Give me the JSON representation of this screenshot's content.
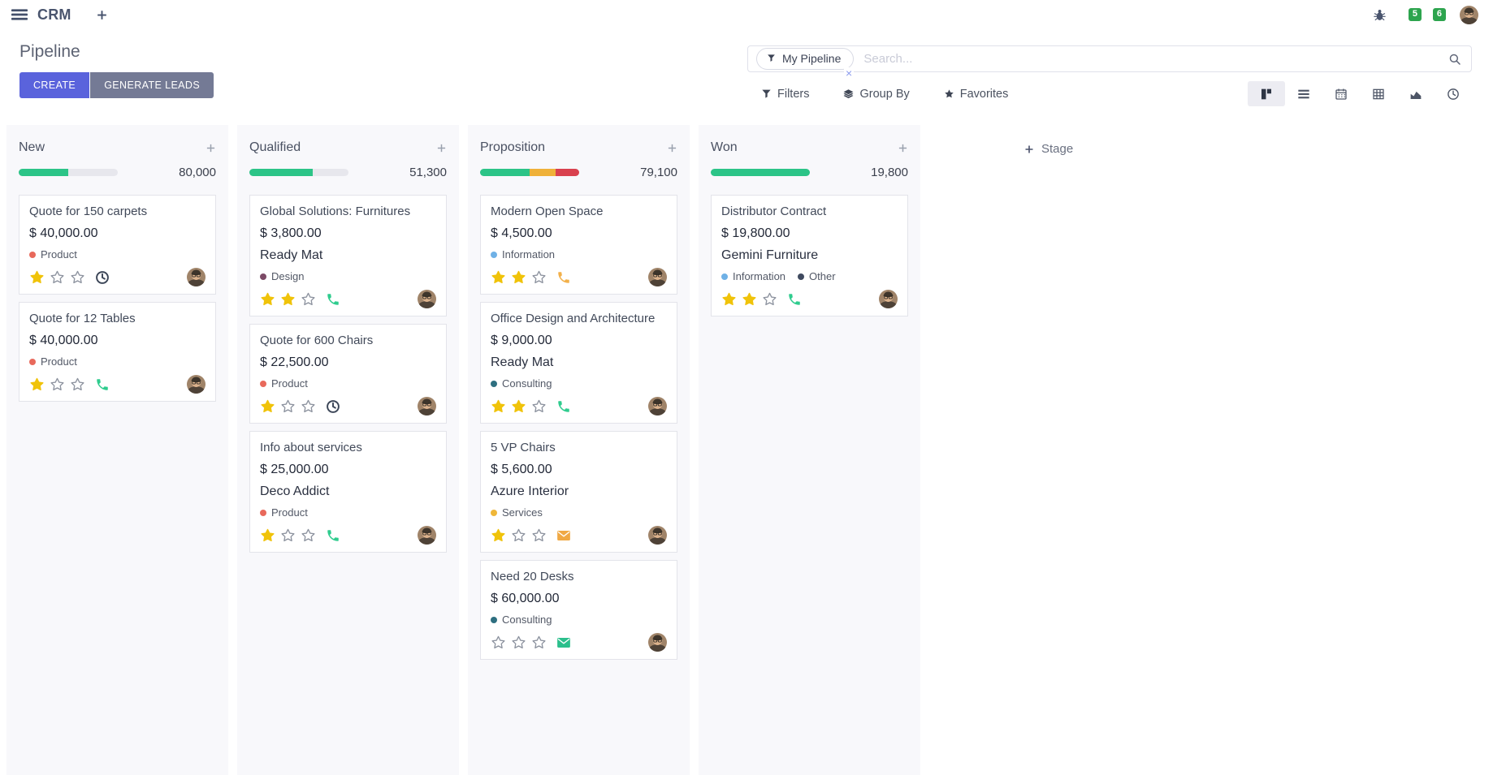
{
  "navbar": {
    "app_name": "CRM",
    "message_count": "5",
    "activity_count": "6"
  },
  "control_panel": {
    "title": "Pipeline",
    "create_label": "CREATE",
    "generate_leads_label": "GENERATE LEADS",
    "search": {
      "facet": "My Pipeline",
      "placeholder": "Search...",
      "close_glyph": "×"
    },
    "menus": {
      "filters_label": "Filters",
      "group_by_label": "Group By",
      "favorites_label": "Favorites"
    },
    "view_switcher": {
      "active": "kanban",
      "views": [
        "kanban",
        "list",
        "calendar",
        "pivot",
        "graph",
        "activity"
      ]
    }
  },
  "colors": {
    "primary_button": "#5a63dc",
    "secondary_button": "#747a95",
    "badge": "#2da44e",
    "progress_green": "#2cc487",
    "progress_yellow": "#efb139",
    "progress_red": "#d9414e"
  },
  "board": {
    "add_stage_label": "Stage",
    "columns": [
      {
        "title": "New",
        "total": "80,000",
        "progress": [
          {
            "color": "#2cc487",
            "pct": 50
          }
        ],
        "cards": [
          {
            "title": "Quote for 150 carpets",
            "amount": "$ 40,000.00",
            "tags": [
              {
                "label": "Product",
                "color": "#e8695b"
              }
            ],
            "stars": 1,
            "activity": {
              "type": "clock",
              "color": "#3b4557"
            }
          },
          {
            "title": "Quote for 12 Tables",
            "amount": "$ 40,000.00",
            "tags": [
              {
                "label": "Product",
                "color": "#e8695b"
              }
            ],
            "stars": 1,
            "activity": {
              "type": "phone",
              "color": "#2fcc8e"
            }
          }
        ]
      },
      {
        "title": "Qualified",
        "total": "51,300",
        "progress": [
          {
            "color": "#2cc487",
            "pct": 64
          }
        ],
        "cards": [
          {
            "title": "Global Solutions: Furnitures",
            "amount": "$ 3,800.00",
            "company": "Ready Mat",
            "tags": [
              {
                "label": "Design",
                "color": "#7c4a66"
              }
            ],
            "stars": 2,
            "activity": {
              "type": "phone",
              "color": "#2fcc8e"
            }
          },
          {
            "title": "Quote for 600 Chairs",
            "amount": "$ 22,500.00",
            "tags": [
              {
                "label": "Product",
                "color": "#e8695b"
              }
            ],
            "stars": 1,
            "activity": {
              "type": "clock",
              "color": "#3b4557"
            }
          },
          {
            "title": "Info about services",
            "amount": "$ 25,000.00",
            "company": "Deco Addict",
            "tags": [
              {
                "label": "Product",
                "color": "#e8695b"
              }
            ],
            "stars": 1,
            "activity": {
              "type": "phone",
              "color": "#2fcc8e"
            }
          }
        ]
      },
      {
        "title": "Proposition",
        "total": "79,100",
        "progress": [
          {
            "color": "#2cc487",
            "pct": 50
          },
          {
            "color": "#efb139",
            "pct": 26
          },
          {
            "color": "#d9414e",
            "pct": 24
          }
        ],
        "cards": [
          {
            "title": "Modern Open Space",
            "amount": "$ 4,500.00",
            "tags": [
              {
                "label": "Information",
                "color": "#6fb1e6"
              }
            ],
            "stars": 2,
            "activity": {
              "type": "phone",
              "color": "#f2b04a"
            }
          },
          {
            "title": "Office Design and Architecture",
            "amount": "$ 9,000.00",
            "company": "Ready Mat",
            "tags": [
              {
                "label": "Consulting",
                "color": "#2e6f80"
              }
            ],
            "stars": 2,
            "activity": {
              "type": "phone",
              "color": "#2fcc8e"
            }
          },
          {
            "title": "5 VP Chairs",
            "amount": "$ 5,600.00",
            "company": "Azure Interior",
            "tags": [
              {
                "label": "Services",
                "color": "#efb739"
              }
            ],
            "stars": 1,
            "activity": {
              "type": "envelope",
              "color": "#f0a944"
            }
          },
          {
            "title": "Need 20 Desks",
            "amount": "$ 60,000.00",
            "tags": [
              {
                "label": "Consulting",
                "color": "#2e6f80"
              }
            ],
            "stars": 0,
            "activity": {
              "type": "envelope",
              "color": "#2bbf8c"
            }
          }
        ]
      },
      {
        "title": "Won",
        "total": "19,800",
        "progress": [
          {
            "color": "#2cc487",
            "pct": 100
          }
        ],
        "cards": [
          {
            "title": "Distributor Contract",
            "amount": "$ 19,800.00",
            "company": "Gemini Furniture",
            "tags": [
              {
                "label": "Information",
                "color": "#6fb1e6"
              },
              {
                "label": "Other",
                "color": "#3f4a5f"
              }
            ],
            "stars": 2,
            "activity": {
              "type": "phone",
              "color": "#2fcc8e"
            }
          }
        ]
      }
    ]
  }
}
